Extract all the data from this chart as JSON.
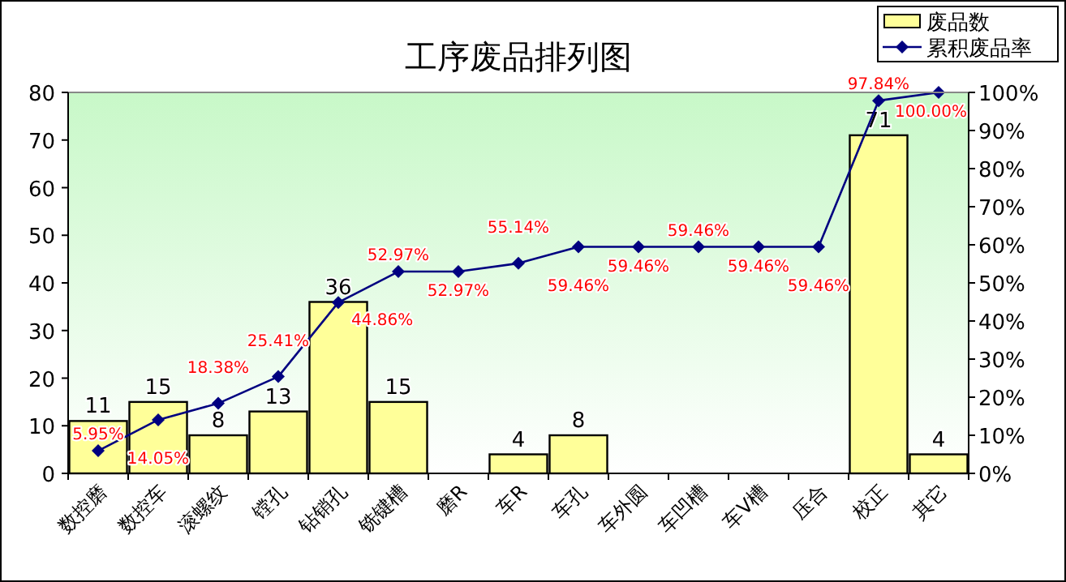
{
  "chart_data": {
    "type": "bar",
    "title": "工序废品排列图",
    "categories": [
      "数控磨",
      "数控车",
      "滚螺纹",
      "镗孔",
      "钻销孔",
      "铣键槽",
      "磨R",
      "车R",
      "车孔",
      "车外圆",
      "车凹槽",
      "车V槽",
      "压合",
      "校正",
      "其它"
    ],
    "series": [
      {
        "name": "废品数",
        "color": "#ffff99",
        "values": [
          11,
          15,
          8,
          13,
          36,
          15,
          0,
          4,
          8,
          0,
          0,
          0,
          0,
          71,
          4
        ],
        "value_labels": [
          "11",
          "15",
          "8",
          "13",
          "36",
          "15",
          null,
          "4",
          "8",
          null,
          null,
          null,
          null,
          "71",
          "4"
        ]
      },
      {
        "name": "累积废品率",
        "type": "line",
        "axis": "y2",
        "color": "#000080",
        "values": [
          5.95,
          14.05,
          18.38,
          25.41,
          44.86,
          52.97,
          52.97,
          55.14,
          59.46,
          59.46,
          59.46,
          59.46,
          59.46,
          97.84,
          100
        ],
        "value_labels": [
          "5.95%",
          "14.05%",
          "18.38%",
          "25.41%",
          "44.86%",
          "52.97%",
          "52.97%",
          "55.14%",
          "59.46%",
          "59.46%",
          "59.46%",
          "59.46%",
          "59.46%",
          "97.84%",
          "100.00%"
        ]
      }
    ],
    "ylim": [
      0,
      80
    ],
    "yticks": [
      0,
      10,
      20,
      30,
      40,
      50,
      60,
      70,
      80
    ],
    "y2lim": [
      0,
      100
    ],
    "y2ticks": [
      {
        "value": 0,
        "label": "0%"
      },
      {
        "value": 10,
        "label": "10%"
      },
      {
        "value": 20,
        "label": "20%"
      },
      {
        "value": 30,
        "label": "30%"
      },
      {
        "value": 40,
        "label": "40%"
      },
      {
        "value": 50,
        "label": "50%"
      },
      {
        "value": 60,
        "label": "60%"
      },
      {
        "value": 70,
        "label": "70%"
      },
      {
        "value": 80,
        "label": "80%"
      },
      {
        "value": 90,
        "label": "90%"
      },
      {
        "value": 100,
        "label": "100%"
      }
    ],
    "legend": "top right",
    "marker": "diamond",
    "grid": false
  }
}
